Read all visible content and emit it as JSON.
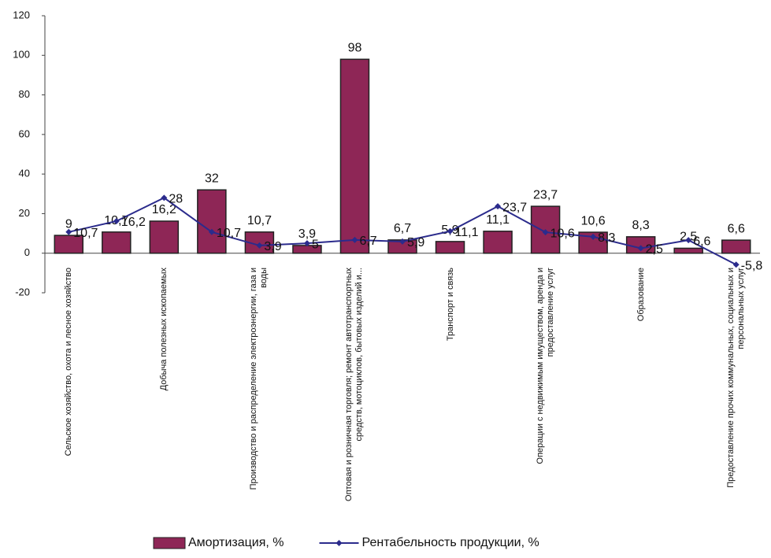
{
  "chart_data": {
    "type": "bar_line",
    "categories": [
      "Сельское хозяйство, охота и лесное хозяйство",
      null,
      "Добыча полезных ископаемых",
      null,
      "Производство и распределение электроэнергии, газа и воды",
      null,
      "Оптовая и розничная торговля; ремонт автотранспортных средств, мотоциклов, бытовых изделий и...",
      null,
      "Транспорт и связь",
      null,
      "Операции с недвижимым имуществом, аренда и предоставление услуг",
      null,
      "Образование",
      null,
      "Предоставление прочих коммунальных, социальных и персональных услуг"
    ],
    "series": [
      {
        "name": "Амортизация, %",
        "type": "bar",
        "color": "#8e2656",
        "values": [
          9,
          10.7,
          16.2,
          32,
          10.7,
          3.9,
          98,
          6.7,
          5.9,
          11.1,
          23.7,
          10.6,
          8.3,
          2.5,
          6.6
        ],
        "value_labels": [
          "9",
          "10,7",
          "16,2",
          "32",
          "10,7",
          "3,9",
          "98",
          "6,7",
          "5,9",
          "11,1",
          "23,7",
          "10,6",
          "8,3",
          "2,5",
          "6,6"
        ]
      },
      {
        "name": "Рентабельность продукции, %",
        "type": "line",
        "color": "#2b2b8c",
        "values": [
          10.7,
          16.2,
          28,
          10.7,
          3.9,
          5,
          6.7,
          5.9,
          11.1,
          23.7,
          10.6,
          8.3,
          2.5,
          6.6,
          -5.8
        ],
        "value_labels": [
          "10,7",
          "16,2",
          "28",
          "10,7",
          "3,9",
          "5",
          "6,7",
          "5,9",
          "11,1",
          "23,7",
          "10,6",
          "8,3",
          "2,5",
          "6,6",
          "-5,8"
        ]
      }
    ],
    "ylim": [
      -20,
      120
    ],
    "yticks": [
      -20,
      0,
      20,
      40,
      60,
      80,
      100,
      120
    ],
    "grid": false,
    "legend": "bottom"
  }
}
